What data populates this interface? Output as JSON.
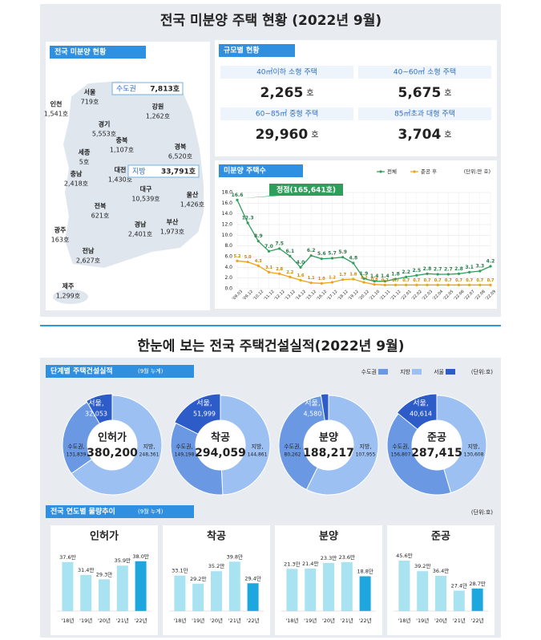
{
  "title": "전국 미분양 주택 현황 (2022년 9월)",
  "map": {
    "label": "전국 미분양 현황",
    "regions": [
      {
        "name": "서울",
        "value": "719호"
      },
      {
        "name": "인천",
        "value": "1,541호"
      },
      {
        "name": "경기",
        "value": "5,553호"
      },
      {
        "name": "강원",
        "value": "1,262호"
      },
      {
        "name": "충북",
        "value": "1,107호"
      },
      {
        "name": "경북",
        "value": "6,520호"
      },
      {
        "name": "세종",
        "value": "5호"
      },
      {
        "name": "충남",
        "value": "2,418호"
      },
      {
        "name": "대전",
        "value": "1,430호"
      },
      {
        "name": "대구",
        "value": "10,539호"
      },
      {
        "name": "울산",
        "value": "1,426호"
      },
      {
        "name": "전북",
        "value": "621호"
      },
      {
        "name": "경남",
        "value": "2,401호"
      },
      {
        "name": "부산",
        "value": "1,973호"
      },
      {
        "name": "광주",
        "value": "163호"
      },
      {
        "name": "전남",
        "value": "2,627호"
      },
      {
        "name": "제주",
        "value": "1,299호"
      }
    ],
    "groups": [
      {
        "name": "수도권",
        "value": "7,813호"
      },
      {
        "name": "지방",
        "value": "33,791호"
      }
    ]
  },
  "sizes": {
    "label": "규모별 현황",
    "cells": [
      {
        "name": "40㎡이하 소형 주택",
        "value": "2,265",
        "unit": "호"
      },
      {
        "name": "40~60㎡ 소형 주택",
        "value": "5,675",
        "unit": "호"
      },
      {
        "name": "60~85㎡ 중형 주택",
        "value": "29,960",
        "unit": "호"
      },
      {
        "name": "85㎡초과 대형 주택",
        "value": "3,704",
        "unit": "호"
      }
    ]
  },
  "section2": {
    "title": "한눈에 보는 전국 주택건설실적(2022년 9월)",
    "stage_label": "단계별 주택건설실적",
    "stage_note": "(9월 누계)",
    "stage_unit": "(단위:호)",
    "trend_label": "전국 연도별 물량추이",
    "trend_note": "(9월 누계)",
    "trend_unit": "(단위:호)"
  },
  "chart_data": [
    {
      "type": "line",
      "title": "미분양 주택수",
      "annotation": "정점(165,641호)",
      "unit": "(단위:만 호)",
      "x": [
        "'09.03",
        "'09.12",
        "'10.12",
        "'11.12",
        "'12.12",
        "'13.12",
        "'14.12",
        "'15.12",
        "'16.12",
        "'17.12",
        "'18.12",
        "'19.12",
        "'20.12",
        "'21.10",
        "'21.11",
        "'21.12",
        "'22.01",
        "'22.02",
        "'22.03",
        "'22.04",
        "'22.05",
        "'22.06",
        "'22.07",
        "'22.08",
        "'22.09"
      ],
      "series": [
        {
          "name": "전체",
          "color": "#2e9e5b",
          "values": [
            16.6,
            12.3,
            8.9,
            7.0,
            7.5,
            6.1,
            4.0,
            6.2,
            5.6,
            5.7,
            5.9,
            4.8,
            1.9,
            1.4,
            1.4,
            1.8,
            2.2,
            2.5,
            2.8,
            2.7,
            2.7,
            2.8,
            3.1,
            3.3,
            4.2
          ],
          "value_labels": [
            "16.6",
            "12.3",
            "8.9",
            "7.0",
            "7.5",
            "6.1",
            "4.0",
            "6.2",
            "5.6",
            "5.7",
            "5.9",
            "4.8",
            "1.9",
            "1.4",
            "1.4",
            "1.8",
            "2.2",
            "2.5",
            "2.8",
            "2.7",
            "2.7",
            "2.8",
            "3.1",
            "3.3",
            "4.2"
          ]
        },
        {
          "name": "준공 후",
          "color": "#eea21c",
          "values": [
            5.2,
            5.0,
            4.3,
            3.1,
            2.8,
            2.2,
            1.6,
            1.1,
            1.0,
            1.2,
            1.7,
            1.8,
            1.2,
            0.8,
            0.7,
            0.7,
            0.7,
            0.7,
            0.7,
            0.7,
            0.7,
            0.7,
            0.7,
            0.7,
            0.7
          ],
          "value_labels": [
            "5.2",
            "5.0",
            "4.3",
            "3.1",
            "2.8",
            "2.2",
            "1.6",
            "1.1",
            "1.0",
            "1.2",
            "1.7",
            "1.8",
            "1.2",
            "0.8",
            "0.7",
            "0.7",
            "0.7",
            "0.7",
            "0.7",
            "0.7",
            "0.7",
            "0.7",
            "0.7",
            "0.7",
            "0.7"
          ]
        }
      ],
      "ylim": [
        0,
        18
      ],
      "yticks": [
        {
          "value": 0,
          "label": "0.0"
        },
        {
          "value": 2,
          "label": "2.0"
        },
        {
          "value": 4,
          "label": "4.0"
        },
        {
          "value": 6,
          "label": "6.0"
        },
        {
          "value": 8,
          "label": "8.0"
        },
        {
          "value": 10,
          "label": "10.0"
        },
        {
          "value": 12,
          "label": "12.0"
        },
        {
          "value": 14,
          "label": "14.0"
        },
        {
          "value": 16,
          "label": "16.0"
        },
        {
          "value": 18,
          "label": "18.0"
        }
      ],
      "grid": true
    },
    {
      "type": "donut",
      "title": "인허가",
      "total": 380200,
      "total_label": "380,200",
      "series": [
        {
          "name": "서울",
          "label": "서울,",
          "color": "#2d5cc8",
          "value": 32053,
          "value_label": "32,053"
        },
        {
          "name": "수도권",
          "label": "수도권,",
          "color": "#6b98e3",
          "value": 131839,
          "value_label": "131,839"
        },
        {
          "name": "지방",
          "label": "지방,",
          "color": "#9cc0f2",
          "value": 248361,
          "value_label": "248,361"
        }
      ]
    },
    {
      "type": "donut",
      "title": "착공",
      "total": 294059,
      "total_label": "294,059",
      "series": [
        {
          "name": "서울",
          "label": "서울,",
          "color": "#2d5cc8",
          "value": 51999,
          "value_label": "51,999"
        },
        {
          "name": "수도권",
          "label": "수도권,",
          "color": "#6b98e3",
          "value": 149198,
          "value_label": "149,198"
        },
        {
          "name": "지방",
          "label": "지방,",
          "color": "#9cc0f2",
          "value": 144861,
          "value_label": "144,861"
        }
      ]
    },
    {
      "type": "donut",
      "title": "분양",
      "total": 188217,
      "total_label": "188,217",
      "series": [
        {
          "name": "서울",
          "label": "서울,",
          "color": "#2d5cc8",
          "value": 4580,
          "value_label": "4,580"
        },
        {
          "name": "수도권",
          "label": "수도권,",
          "color": "#6b98e3",
          "value": 80262,
          "value_label": "80,262"
        },
        {
          "name": "지방",
          "label": "지방,",
          "color": "#9cc0f2",
          "value": 107955,
          "value_label": "107,955"
        }
      ]
    },
    {
      "type": "donut",
      "title": "준공",
      "total": 287415,
      "total_label": "287,415",
      "series": [
        {
          "name": "서울",
          "label": "서울,",
          "color": "#2d5cc8",
          "value": 40614,
          "value_label": "40,614"
        },
        {
          "name": "수도권",
          "label": "수도권,",
          "color": "#6b98e3",
          "value": 156807,
          "value_label": "156,807"
        },
        {
          "name": "지방",
          "label": "지방,",
          "color": "#9cc0f2",
          "value": 130608,
          "value_label": "130,608"
        }
      ]
    },
    {
      "type": "bar",
      "title": "인허가",
      "categories": [
        "'18년",
        "'19년",
        "'20년",
        "'21년",
        "'22년"
      ],
      "values": [
        37.6,
        31.4,
        29.3,
        35.9,
        38.0
      ],
      "value_labels": [
        "37.6만",
        "31.4만",
        "29.3만",
        "35.9만",
        "38.0만"
      ],
      "colors": [
        "#a9e3f2",
        "#a9e3f2",
        "#a9e3f2",
        "#a9e3f2",
        "#1ea7df"
      ],
      "ylim": [
        14,
        41
      ]
    },
    {
      "type": "bar",
      "title": "착공",
      "categories": [
        "'18년",
        "'19년",
        "'20년",
        "'21년",
        "'22년"
      ],
      "values": [
        33.1,
        29.2,
        35.2,
        39.8,
        29.4
      ],
      "value_labels": [
        "33.1만",
        "29.2만",
        "35.2만",
        "39.8만",
        "29.4만"
      ],
      "colors": [
        "#a9e3f2",
        "#a9e3f2",
        "#a9e3f2",
        "#a9e3f2",
        "#1ea7df"
      ],
      "ylim": [
        16,
        43
      ]
    },
    {
      "type": "bar",
      "title": "분양",
      "categories": [
        "'18년",
        "'19년",
        "'20년",
        "'21년",
        "'22년"
      ],
      "values": [
        21.3,
        21.4,
        23.3,
        23.6,
        18.8
      ],
      "value_labels": [
        "21.3만",
        "21.4만",
        "23.3만",
        "23.6만",
        "18.8만"
      ],
      "colors": [
        "#a9e3f2",
        "#a9e3f2",
        "#a9e3f2",
        "#a9e3f2",
        "#1ea7df"
      ],
      "ylim": [
        7,
        26
      ]
    },
    {
      "type": "bar",
      "title": "준공",
      "categories": [
        "'18년",
        "'19년",
        "'20년",
        "'21년",
        "'22년"
      ],
      "values": [
        45.6,
        39.2,
        36.4,
        27.4,
        28.7
      ],
      "value_labels": [
        "45.6만",
        "39.2만",
        "36.4만",
        "27.4만",
        "28.7만"
      ],
      "colors": [
        "#a9e3f2",
        "#a9e3f2",
        "#a9e3f2",
        "#a9e3f2",
        "#1ea7df"
      ],
      "ylim": [
        15,
        49
      ]
    }
  ]
}
